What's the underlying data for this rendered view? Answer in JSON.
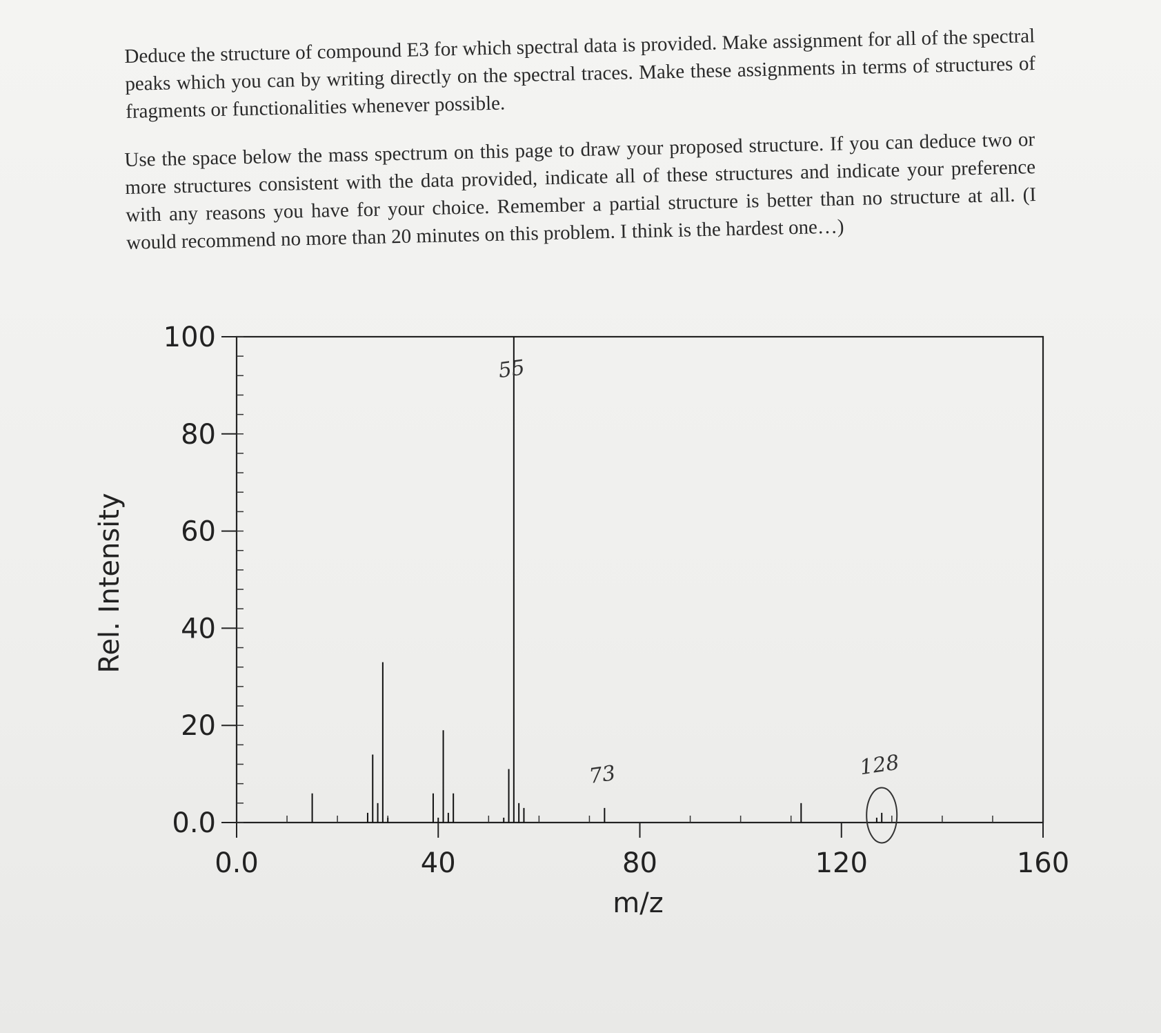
{
  "instructions": {
    "paragraph1": "Deduce the structure of compound E3 for which spectral data is provided. Make assignment for all of the spectral peaks which you can by writing directly on the spectral traces. Make these assignments in terms of structures of fragments or functionalities whenever possible.",
    "paragraph2": "Use the space below the mass spectrum on this page to draw your proposed structure. If you can deduce two or more structures consistent with the data provided, indicate all of these structures and indicate your preference with any reasons you have for your choice. Remember a partial structure is better than no structure at all. (I would recommend no more than 20 minutes on this problem. I think is the hardest one…)"
  },
  "chart_data": {
    "type": "bar",
    "xlabel": "m/z",
    "ylabel": "Rel. Intensity",
    "xlim": [
      0,
      160
    ],
    "ylim": [
      0,
      100
    ],
    "x_ticks": [
      "0.0",
      "40",
      "80",
      "120",
      "160"
    ],
    "y_ticks": [
      "0.0",
      "20",
      "40",
      "60",
      "80",
      "100"
    ],
    "peaks": [
      {
        "mz": 15,
        "intensity": 6
      },
      {
        "mz": 26,
        "intensity": 2
      },
      {
        "mz": 27,
        "intensity": 14
      },
      {
        "mz": 28,
        "intensity": 4
      },
      {
        "mz": 29,
        "intensity": 33
      },
      {
        "mz": 30,
        "intensity": 1
      },
      {
        "mz": 39,
        "intensity": 6
      },
      {
        "mz": 40,
        "intensity": 1
      },
      {
        "mz": 41,
        "intensity": 19
      },
      {
        "mz": 42,
        "intensity": 2
      },
      {
        "mz": 43,
        "intensity": 6
      },
      {
        "mz": 53,
        "intensity": 1
      },
      {
        "mz": 54,
        "intensity": 11
      },
      {
        "mz": 55,
        "intensity": 100
      },
      {
        "mz": 56,
        "intensity": 4
      },
      {
        "mz": 57,
        "intensity": 3
      },
      {
        "mz": 73,
        "intensity": 3
      },
      {
        "mz": 112,
        "intensity": 4
      },
      {
        "mz": 127,
        "intensity": 1
      },
      {
        "mz": 128,
        "intensity": 2
      }
    ],
    "annotations": [
      {
        "text": "55",
        "mz": 55
      },
      {
        "text": "73",
        "mz": 73
      },
      {
        "text": "128",
        "mz": 128
      }
    ]
  }
}
